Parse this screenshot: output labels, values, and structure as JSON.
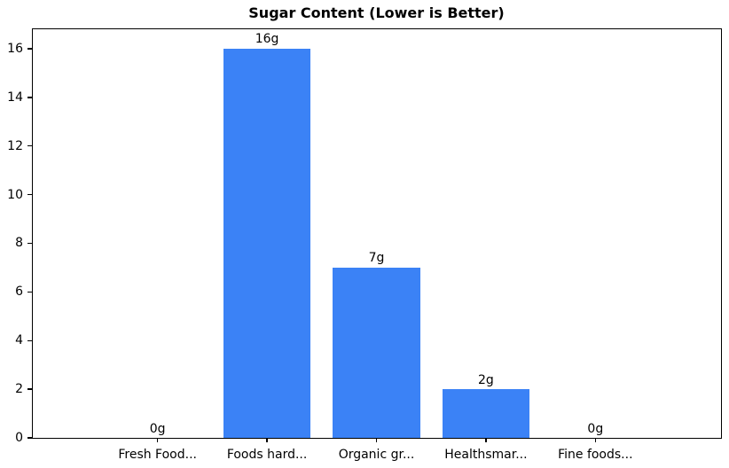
{
  "chart_data": {
    "type": "bar",
    "title": "Sugar Content (Lower is Better)",
    "categories": [
      "Fresh Food...",
      "Foods hard...",
      "Organic gr...",
      "Healthsmar...",
      "Fine foods..."
    ],
    "values": [
      0,
      16,
      7,
      2,
      0
    ],
    "bar_labels": [
      "0g",
      "16g",
      "7g",
      "2g",
      "0g"
    ],
    "yticks": [
      0,
      2,
      4,
      6,
      8,
      10,
      12,
      14,
      16
    ],
    "ylim": [
      0,
      16.8
    ],
    "xlabel": "",
    "ylabel": "",
    "legend": false,
    "grid": false,
    "bar_color": "#3b82f6",
    "background_color": "#ffffff",
    "text_color": "#000000",
    "spine_color": "#000000"
  }
}
